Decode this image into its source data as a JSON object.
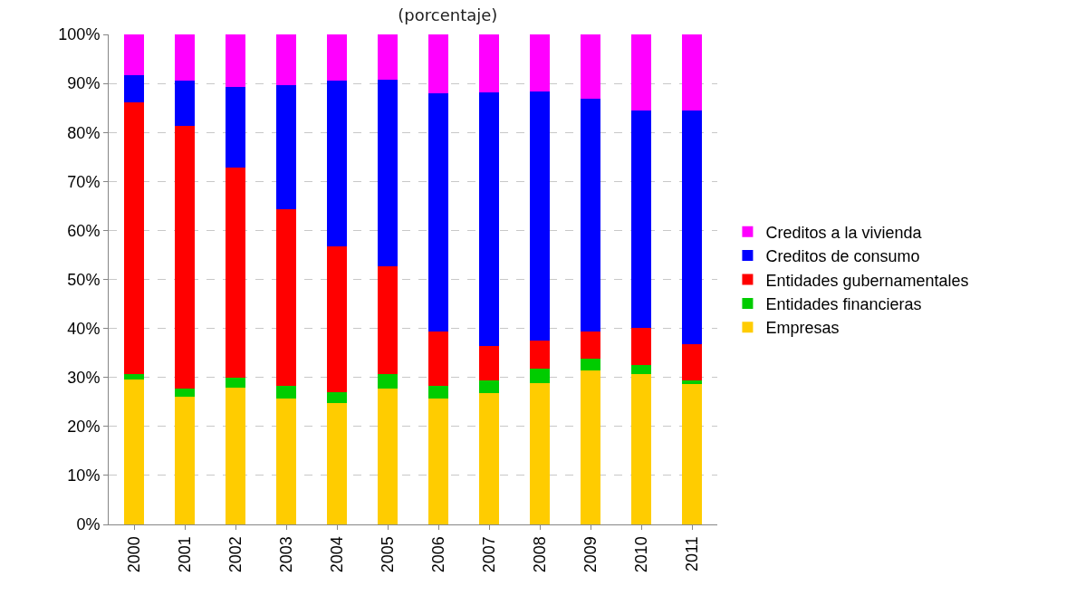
{
  "chart_data": {
    "type": "bar",
    "title": "(porcentaje)",
    "stacked": true,
    "categories": [
      "2000",
      "2001",
      "2002",
      "2003",
      "2004",
      "2005",
      "2006",
      "2007",
      "2008",
      "2009",
      "2010",
      "2011"
    ],
    "series": [
      {
        "name": "Empresas",
        "color": "#ffcc00",
        "values": [
          29.6,
          26.1,
          27.9,
          25.7,
          24.7,
          27.8,
          25.7,
          26.8,
          28.9,
          31.5,
          30.6,
          28.6
        ]
      },
      {
        "name": "Entidades financieras",
        "color": "#00cc00",
        "values": [
          1.0,
          1.7,
          2.0,
          2.5,
          2.3,
          2.9,
          2.5,
          2.5,
          2.9,
          2.4,
          2.0,
          0.8
        ]
      },
      {
        "name": "Entidades gubernamentales",
        "color": "#ff0000",
        "values": [
          55.6,
          53.6,
          42.9,
          36.2,
          29.8,
          22.0,
          11.1,
          7.1,
          5.8,
          5.5,
          7.6,
          7.3
        ]
      },
      {
        "name": "Creditos de consumo",
        "color": "#0000ff",
        "values": [
          5.5,
          9.2,
          16.5,
          25.3,
          33.7,
          38.1,
          48.7,
          51.8,
          50.8,
          47.5,
          44.3,
          47.8
        ]
      },
      {
        "name": "Creditos a la vivienda",
        "color": "#ff00ff",
        "values": [
          8.3,
          9.4,
          10.7,
          10.3,
          9.5,
          9.2,
          12.0,
          11.8,
          11.6,
          13.1,
          15.5,
          15.5
        ]
      }
    ],
    "ylim": [
      0,
      100
    ],
    "yticks": [
      {
        "value": 0,
        "label": "0%"
      },
      {
        "value": 10,
        "label": "10%"
      },
      {
        "value": 20,
        "label": "20%"
      },
      {
        "value": 30,
        "label": "30%"
      },
      {
        "value": 40,
        "label": "40%"
      },
      {
        "value": 50,
        "label": "50%"
      },
      {
        "value": 60,
        "label": "60%"
      },
      {
        "value": 70,
        "label": "70%"
      },
      {
        "value": 80,
        "label": "80%"
      },
      {
        "value": 90,
        "label": "90%"
      },
      {
        "value": 100,
        "label": "100%"
      }
    ],
    "grid": "y",
    "legend": "right"
  }
}
